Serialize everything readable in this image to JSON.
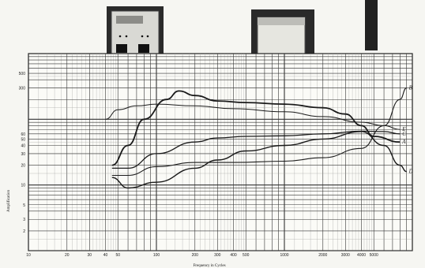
{
  "chart_data": {
    "type": "line",
    "xlabel": "Frequency in Cycles",
    "ylabel": "Amplification",
    "x_scale": "log",
    "y_scale": "log",
    "xlim": [
      10,
      10000
    ],
    "ylim": [
      1,
      1000
    ],
    "grid": true,
    "x_ticks": [
      "10",
      "20",
      "30",
      "40",
      "50",
      "100",
      "200",
      "300",
      "400",
      "500",
      "1000",
      "2000",
      "3000",
      "4000",
      "5000"
    ],
    "y_ticks": [
      "500",
      "300",
      "60",
      "50",
      "40",
      "30",
      "20",
      "10",
      "5",
      "3",
      "2"
    ],
    "series": [
      {
        "name": "A",
        "points": [
          [
            45,
            20
          ],
          [
            60,
            40
          ],
          [
            80,
            100
          ],
          [
            120,
            200
          ],
          [
            150,
            270
          ],
          [
            200,
            230
          ],
          [
            300,
            190
          ],
          [
            500,
            180
          ],
          [
            1000,
            170
          ],
          [
            2000,
            150
          ],
          [
            3000,
            120
          ],
          [
            4000,
            80
          ],
          [
            5000,
            55
          ],
          [
            8000,
            45
          ]
        ]
      },
      {
        "name": "B",
        "points": [
          [
            45,
            14
          ],
          [
            60,
            14
          ],
          [
            100,
            19
          ],
          [
            200,
            22
          ],
          [
            300,
            22
          ],
          [
            400,
            22
          ],
          [
            1000,
            23
          ],
          [
            2000,
            26
          ],
          [
            4000,
            36
          ],
          [
            6000,
            80
          ],
          [
            8000,
            200
          ],
          [
            9000,
            300
          ]
        ]
      },
      {
        "name": "C",
        "points": [
          [
            45,
            18
          ],
          [
            60,
            18
          ],
          [
            100,
            30
          ],
          [
            200,
            45
          ],
          [
            300,
            52
          ],
          [
            500,
            55
          ],
          [
            1000,
            56
          ],
          [
            2000,
            60
          ],
          [
            4000,
            66
          ],
          [
            6000,
            65
          ],
          [
            8000,
            60
          ]
        ]
      },
      {
        "name": "D",
        "points": [
          [
            45,
            13
          ],
          [
            60,
            9
          ],
          [
            100,
            11
          ],
          [
            200,
            18
          ],
          [
            300,
            24
          ],
          [
            500,
            33
          ],
          [
            1000,
            40
          ],
          [
            2000,
            50
          ],
          [
            4000,
            65
          ],
          [
            6000,
            40
          ],
          [
            8000,
            20
          ],
          [
            9000,
            16
          ]
        ]
      },
      {
        "name": "E",
        "points": [
          [
            40,
            100
          ],
          [
            50,
            140
          ],
          [
            70,
            160
          ],
          [
            100,
            170
          ],
          [
            200,
            160
          ],
          [
            400,
            145
          ],
          [
            1000,
            130
          ],
          [
            2000,
            110
          ],
          [
            4000,
            90
          ],
          [
            6000,
            80
          ],
          [
            8000,
            70
          ]
        ]
      }
    ],
    "curve_labels": [
      "A",
      "B",
      "C",
      "D",
      "E"
    ]
  }
}
